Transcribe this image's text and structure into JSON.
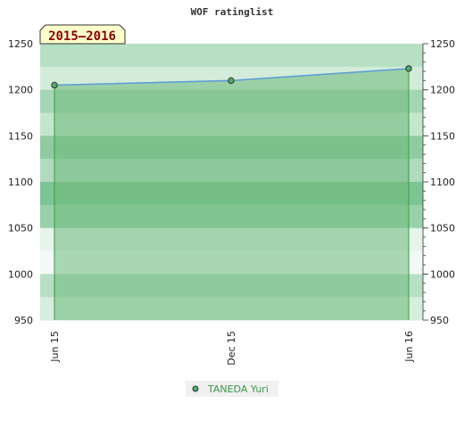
{
  "chart_data": {
    "type": "area",
    "title": "WOF ratinglist",
    "period_label": "2015–2016",
    "xlabel": "",
    "ylabel": "",
    "ylim": [
      950,
      1250
    ],
    "yticks": [
      950,
      1000,
      1050,
      1100,
      1150,
      1200,
      1250
    ],
    "categories": [
      "Jun 15",
      "Dec 15",
      "Jun 16"
    ],
    "series": [
      {
        "name": "TANEDA Yuri",
        "values": [
          1205,
          1210,
          1223
        ]
      }
    ],
    "grid": true,
    "legend": "bottom-center",
    "colors": {
      "line": "#5b9bd5",
      "fill": "#6dba7c",
      "point": "#4caf65",
      "band_dark": "#7cc493",
      "band_light": "#b7dfc4",
      "label_bg": "#ffffcc"
    }
  }
}
